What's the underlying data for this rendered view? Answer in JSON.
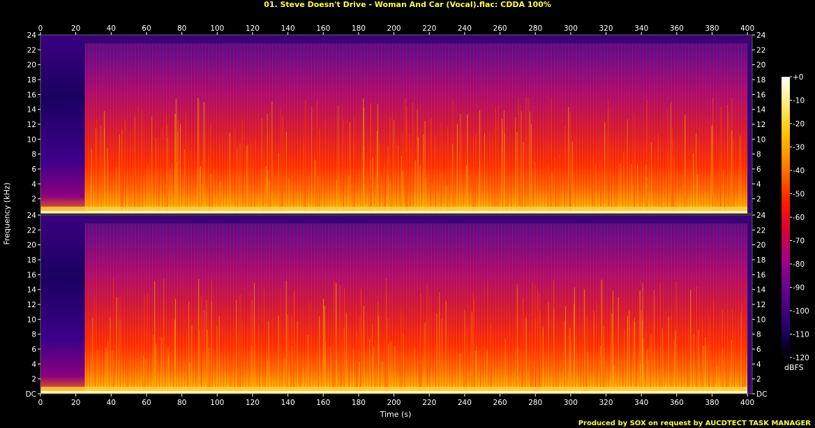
{
  "title": "01. Steve Doesn't Drive - Woman And Car (Vocal).flac: CDDA 100%",
  "footer": "Produced by SOX on request by AUCDTECT TASK MANAGER",
  "chart_data": {
    "type": "heatmap",
    "title": "01. Steve Doesn't Drive - Woman And Car (Vocal).flac: CDDA 100%",
    "xlabel": "Time (s)",
    "ylabel": "Frequency (kHz)",
    "colorbar_label": "dBFS",
    "xlim": [
      0,
      403
    ],
    "ylim": [
      0,
      24
    ],
    "x_ticks": [
      0,
      20,
      40,
      60,
      80,
      100,
      120,
      140,
      160,
      180,
      200,
      220,
      240,
      260,
      280,
      300,
      320,
      340,
      360,
      380,
      400
    ],
    "y_ticks_top": [
      "2",
      "4",
      "6",
      "8",
      "10",
      "12",
      "14",
      "16",
      "18",
      "20",
      "22",
      "24"
    ],
    "y_ticks_bottom": [
      "DC",
      "2",
      "4",
      "6",
      "8",
      "10",
      "12",
      "14",
      "16",
      "18",
      "20",
      "22",
      "24"
    ],
    "colorbar_ticks": [
      "+0",
      "-10",
      "-20",
      "-30",
      "-40",
      "-50",
      "-60",
      "-70",
      "-80",
      "-90",
      "-100",
      "-110",
      "-120"
    ],
    "colorbar_range": [
      -120,
      0
    ],
    "channels": 2,
    "colors": [
      "#000000",
      "#14004a",
      "#3a007a",
      "#6a0090",
      "#a0008a",
      "#d4003a",
      "#ff1a00",
      "#ff7a00",
      "#ffc400",
      "#fff28c",
      "#ffffff"
    ]
  }
}
